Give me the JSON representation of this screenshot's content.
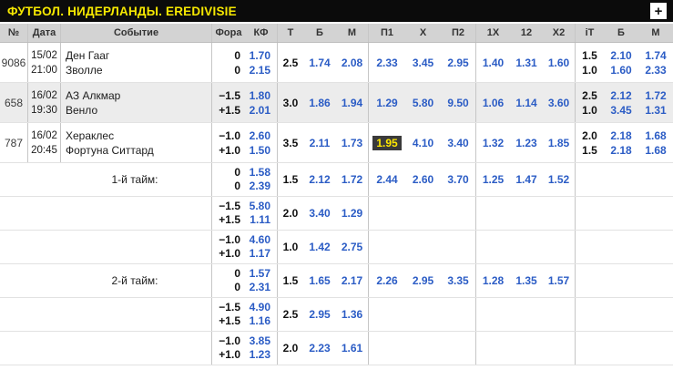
{
  "title_bar": {
    "title": "ФУТБОЛ. НИДЕРЛАНДЫ. EREDIVISIE",
    "add_button": "+"
  },
  "colors": {
    "accent_yellow": "#f6e800",
    "odds_blue": "#2b5cc5",
    "highlight_bg": "#3a3a3a",
    "highlight_text": "#ffe800",
    "header_bg": "#d3d3d3",
    "shaded_row_bg": "#ececec"
  },
  "table": {
    "headers": [
      "№",
      "Дата",
      "Событие",
      "Фора",
      "КФ",
      "Т",
      "Б",
      "М",
      "П1",
      "Х",
      "П2",
      "1Х",
      "12",
      "Х2",
      "iT",
      "Б",
      "М"
    ],
    "rows": [
      {
        "num": "9086",
        "date": [
          "15/02",
          "21:00"
        ],
        "event": [
          "Ден Гааг",
          "Зволле"
        ],
        "fora": [
          "0",
          "0"
        ],
        "kf": [
          "1.70",
          "2.15"
        ],
        "t": "2.5",
        "b": "1.74",
        "m": "2.08",
        "p1": "2.33",
        "x": "3.45",
        "p2": "2.95",
        "h1x": "1.40",
        "h12": "1.31",
        "hx2": "1.60",
        "it": [
          "1.5",
          "1.0"
        ],
        "itb": [
          "2.10",
          "1.60"
        ],
        "itm": [
          "1.74",
          "2.33"
        ]
      },
      {
        "num": "658",
        "date": [
          "16/02",
          "19:30"
        ],
        "event": [
          "АЗ Алкмар",
          "Венло"
        ],
        "shaded": true,
        "fora": [
          "−1.5",
          "+1.5"
        ],
        "kf": [
          "1.80",
          "2.01"
        ],
        "t": "3.0",
        "b": "1.86",
        "m": "1.94",
        "p1": "1.29",
        "x": "5.80",
        "p2": "9.50",
        "h1x": "1.06",
        "h12": "1.14",
        "hx2": "3.60",
        "it": [
          "2.5",
          "1.0"
        ],
        "itb": [
          "2.12",
          "3.45"
        ],
        "itm": [
          "1.72",
          "1.31"
        ]
      },
      {
        "num": "787",
        "date": [
          "16/02",
          "20:45"
        ],
        "event": [
          "Хераклес",
          "Фортуна Ситтард"
        ],
        "fora": [
          "−1.0",
          "+1.0"
        ],
        "kf": [
          "2.60",
          "1.50"
        ],
        "t": "3.5",
        "b": "2.11",
        "m": "1.73",
        "p1": "1.95",
        "p1_highlighted": true,
        "x": "4.10",
        "p2": "3.40",
        "h1x": "1.32",
        "h12": "1.23",
        "hx2": "1.85",
        "it": [
          "2.0",
          "1.5"
        ],
        "itb": [
          "2.18",
          "2.18"
        ],
        "itm": [
          "1.68",
          "1.68"
        ]
      },
      {
        "label": "1-й тайм:",
        "fora": [
          "0",
          "0"
        ],
        "kf": [
          "1.58",
          "2.39"
        ],
        "t": "1.5",
        "b": "2.12",
        "m": "1.72",
        "p1": "2.44",
        "x": "2.60",
        "p2": "3.70",
        "h1x": "1.25",
        "h12": "1.47",
        "hx2": "1.52"
      },
      {
        "fora": [
          "−1.5",
          "+1.5"
        ],
        "kf": [
          "5.80",
          "1.11"
        ],
        "t": "2.0",
        "b": "3.40",
        "m": "1.29"
      },
      {
        "fora": [
          "−1.0",
          "+1.0"
        ],
        "kf": [
          "4.60",
          "1.17"
        ],
        "t": "1.0",
        "b": "1.42",
        "m": "2.75"
      },
      {
        "label": "2-й тайм:",
        "fora": [
          "0",
          "0"
        ],
        "kf": [
          "1.57",
          "2.31"
        ],
        "t": "1.5",
        "b": "1.65",
        "m": "2.17",
        "p1": "2.26",
        "x": "2.95",
        "p2": "3.35",
        "h1x": "1.28",
        "h12": "1.35",
        "hx2": "1.57"
      },
      {
        "fora": [
          "−1.5",
          "+1.5"
        ],
        "kf": [
          "4.90",
          "1.16"
        ],
        "t": "2.5",
        "b": "2.95",
        "m": "1.36"
      },
      {
        "fora": [
          "−1.0",
          "+1.0"
        ],
        "kf": [
          "3.85",
          "1.23"
        ],
        "t": "2.0",
        "b": "2.23",
        "m": "1.61"
      }
    ]
  }
}
